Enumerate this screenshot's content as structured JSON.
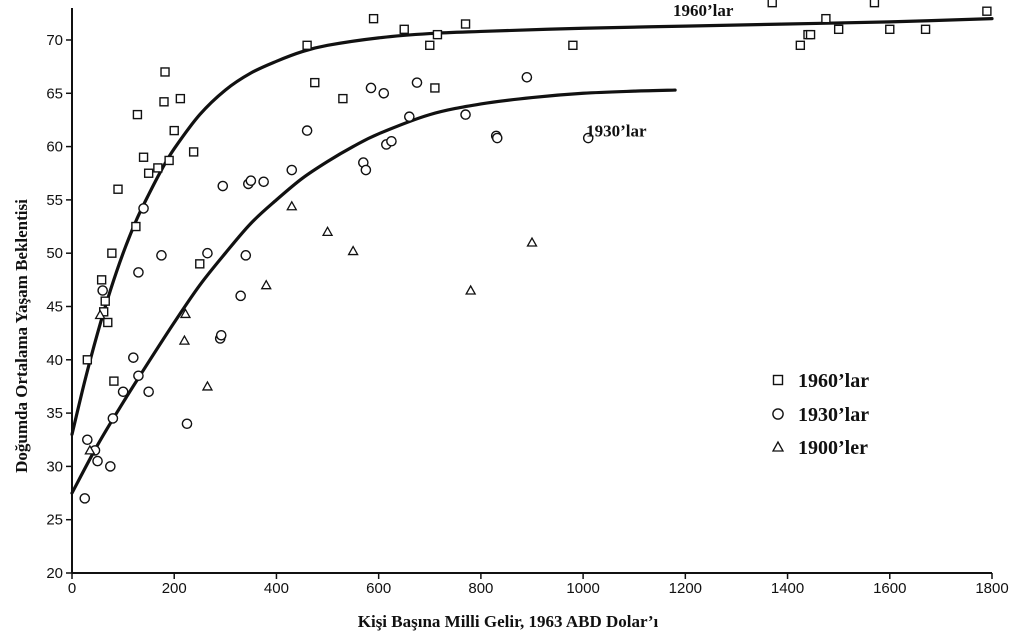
{
  "chart_data": {
    "type": "scatter",
    "xlabel": "Kişi Başına Milli Gelir, 1963 ABD Dolar’ı",
    "ylabel": "Doğumda Ortalama Yaşam Beklentisi",
    "xlim": [
      0,
      1800
    ],
    "ylim": [
      20,
      73
    ],
    "xticks": [
      0,
      200,
      400,
      600,
      800,
      1000,
      1200,
      1400,
      1600,
      1800
    ],
    "yticks": [
      20,
      25,
      30,
      35,
      40,
      45,
      50,
      55,
      60,
      65,
      70
    ],
    "grid": false,
    "legend_position": "right",
    "legend": [
      "1960’lar",
      "1930’lar",
      "1900’ler"
    ],
    "series": [
      {
        "name": "1960’lar",
        "marker": "square",
        "points": [
          [
            30,
            40
          ],
          [
            58,
            47.5
          ],
          [
            62,
            44.5
          ],
          [
            65,
            45.5
          ],
          [
            70,
            43.5
          ],
          [
            78,
            50
          ],
          [
            82,
            38
          ],
          [
            90,
            56
          ],
          [
            125,
            52.5
          ],
          [
            128,
            63
          ],
          [
            140,
            59
          ],
          [
            150,
            57.5
          ],
          [
            168,
            58
          ],
          [
            180,
            64.2
          ],
          [
            182,
            67
          ],
          [
            190,
            58.7
          ],
          [
            200,
            61.5
          ],
          [
            212,
            64.5
          ],
          [
            238,
            59.5
          ],
          [
            250,
            49
          ],
          [
            460,
            69.5
          ],
          [
            475,
            66
          ],
          [
            530,
            64.5
          ],
          [
            590,
            72
          ],
          [
            650,
            71
          ],
          [
            700,
            69.5
          ],
          [
            710,
            65.5
          ],
          [
            715,
            70.5
          ],
          [
            770,
            71.5
          ],
          [
            980,
            69.5
          ],
          [
            1370,
            73.5
          ],
          [
            1425,
            69.5
          ],
          [
            1440,
            70.5
          ],
          [
            1445,
            70.5
          ],
          [
            1475,
            72
          ],
          [
            1500,
            71
          ],
          [
            1570,
            73.5
          ],
          [
            1600,
            71
          ],
          [
            1670,
            71
          ],
          [
            1790,
            72.7
          ]
        ]
      },
      {
        "name": "1930’lar",
        "marker": "circle",
        "points": [
          [
            25,
            27
          ],
          [
            30,
            32.5
          ],
          [
            45,
            31.5
          ],
          [
            50,
            30.5
          ],
          [
            60,
            46.5
          ],
          [
            75,
            30
          ],
          [
            80,
            34.5
          ],
          [
            100,
            37
          ],
          [
            120,
            40.2
          ],
          [
            130,
            38.5
          ],
          [
            130,
            48.2
          ],
          [
            140,
            54.2
          ],
          [
            150,
            37
          ],
          [
            175,
            49.8
          ],
          [
            225,
            34
          ],
          [
            265,
            50
          ],
          [
            290,
            42
          ],
          [
            292,
            42.3
          ],
          [
            295,
            56.3
          ],
          [
            330,
            46
          ],
          [
            340,
            49.8
          ],
          [
            345,
            56.5
          ],
          [
            350,
            56.8
          ],
          [
            375,
            56.7
          ],
          [
            430,
            57.8
          ],
          [
            460,
            61.5
          ],
          [
            570,
            58.5
          ],
          [
            575,
            57.8
          ],
          [
            585,
            65.5
          ],
          [
            610,
            65
          ],
          [
            615,
            60.2
          ],
          [
            625,
            60.5
          ],
          [
            660,
            62.8
          ],
          [
            675,
            66
          ],
          [
            770,
            63
          ],
          [
            830,
            61
          ],
          [
            832,
            60.8
          ],
          [
            890,
            66.5
          ],
          [
            1010,
            60.8
          ]
        ]
      },
      {
        "name": "1900’ler",
        "marker": "triangle",
        "points": [
          [
            35,
            31.5
          ],
          [
            55,
            44.2
          ],
          [
            220,
            41.8
          ],
          [
            222,
            44.3
          ],
          [
            265,
            37.5
          ],
          [
            380,
            47
          ],
          [
            430,
            54.4
          ],
          [
            500,
            52
          ],
          [
            550,
            50.2
          ],
          [
            780,
            46.5
          ],
          [
            900,
            51
          ]
        ]
      }
    ],
    "fit_curves": [
      {
        "label": "1960’lar",
        "points": [
          [
            0,
            33
          ],
          [
            25,
            38
          ],
          [
            50,
            42.5
          ],
          [
            75,
            46.5
          ],
          [
            100,
            50
          ],
          [
            125,
            53
          ],
          [
            150,
            55.5
          ],
          [
            175,
            57.8
          ],
          [
            200,
            59.8
          ],
          [
            250,
            63
          ],
          [
            300,
            65.3
          ],
          [
            350,
            66.9
          ],
          [
            400,
            68
          ],
          [
            450,
            68.9
          ],
          [
            500,
            69.5
          ],
          [
            600,
            70.2
          ],
          [
            700,
            70.6
          ],
          [
            800,
            70.8
          ],
          [
            1000,
            71.1
          ],
          [
            1200,
            71.3
          ],
          [
            1400,
            71.5
          ],
          [
            1600,
            71.7
          ],
          [
            1800,
            72
          ]
        ]
      },
      {
        "label": "1930’lar",
        "points": [
          [
            0,
            27.5
          ],
          [
            50,
            32
          ],
          [
            100,
            36
          ],
          [
            150,
            39.8
          ],
          [
            200,
            43.5
          ],
          [
            250,
            47
          ],
          [
            300,
            50
          ],
          [
            350,
            52.8
          ],
          [
            400,
            55
          ],
          [
            450,
            57
          ],
          [
            500,
            58.6
          ],
          [
            550,
            60
          ],
          [
            600,
            61.2
          ],
          [
            700,
            63
          ],
          [
            800,
            64
          ],
          [
            900,
            64.6
          ],
          [
            1000,
            65
          ],
          [
            1100,
            65.2
          ],
          [
            1180,
            65.3
          ]
        ]
      }
    ]
  }
}
